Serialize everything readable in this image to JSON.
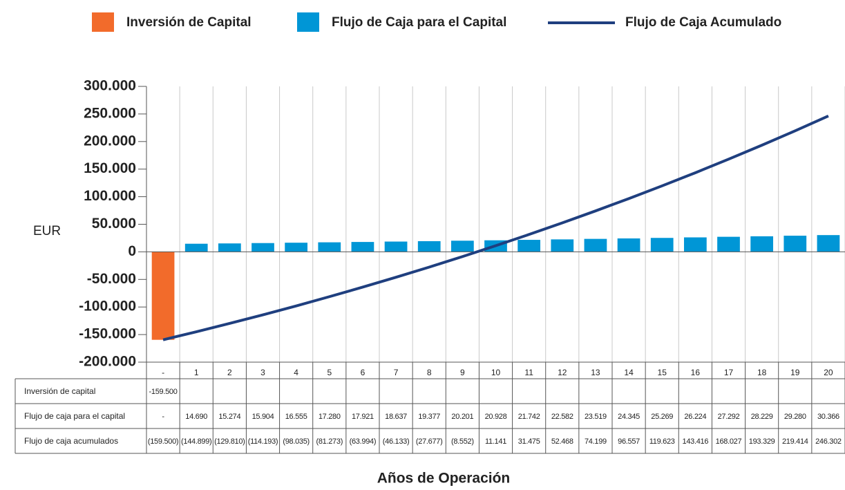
{
  "chart_data": {
    "type": "bar-line-table",
    "y_label": "EUR",
    "x_label": "Años de Operación",
    "categories": [
      "-",
      "1",
      "2",
      "3",
      "4",
      "5",
      "6",
      "7",
      "8",
      "9",
      "10",
      "11",
      "12",
      "13",
      "14",
      "15",
      "16",
      "17",
      "18",
      "19",
      "20"
    ],
    "series": [
      {
        "name": "Inversión de Capital",
        "color": "#f26b2b",
        "kind": "bar",
        "values": [
          -159500,
          null,
          null,
          null,
          null,
          null,
          null,
          null,
          null,
          null,
          null,
          null,
          null,
          null,
          null,
          null,
          null,
          null,
          null,
          null,
          null
        ],
        "value_labels": [
          "-159.500",
          null,
          null,
          null,
          null,
          null,
          null,
          null,
          null,
          null,
          null,
          null,
          null,
          null,
          null,
          null,
          null,
          null,
          null,
          null,
          null
        ]
      },
      {
        "name": "Flujo de Caja para el Capital",
        "color": "#0096d6",
        "kind": "bar",
        "values": [
          null,
          14690,
          15274,
          15904,
          16555,
          17280,
          17921,
          18637,
          19377,
          20201,
          20928,
          21742,
          22582,
          23519,
          24345,
          25269,
          26224,
          27292,
          28229,
          29280,
          30366
        ],
        "value_labels": [
          "-",
          "14.690",
          "15.274",
          "15.904",
          "16.555",
          "17.280",
          "17.921",
          "18.637",
          "19.377",
          "20.201",
          "20.928",
          "21.742",
          "22.582",
          "23.519",
          "24.345",
          "25.269",
          "26.224",
          "27.292",
          "28.229",
          "29.280",
          "30.366"
        ]
      },
      {
        "name": "Flujo de Caja Acumulado",
        "color": "#1f3f7f",
        "kind": "line",
        "values": [
          -159500,
          -144899,
          -129810,
          -114193,
          -98035,
          -81273,
          -63994,
          -46133,
          -27677,
          -8552,
          11141,
          31475,
          52468,
          74199,
          96557,
          119623,
          143416,
          168027,
          193329,
          219414,
          246302
        ],
        "value_labels": [
          "(159.500)",
          "(144.899)",
          "(129.810)",
          "(114.193)",
          "(98.035)",
          "(81.273)",
          "(63.994)",
          "(46.133)",
          "(27.677)",
          "(8.552)",
          "11.141",
          "31.475",
          "52.468",
          "74.199",
          "96.557",
          "119.623",
          "143.416",
          "168.027",
          "193.329",
          "219.414",
          "246.302"
        ]
      }
    ],
    "table_row_labels": [
      "Inversión de capital",
      "Flujo de caja para el capital",
      "Flujo de caja acumulados"
    ],
    "ylim": [
      -200000,
      300000
    ],
    "yticks": [
      {
        "value": -200000,
        "label": "-200.000"
      },
      {
        "value": -150000,
        "label": "-150.000"
      },
      {
        "value": -100000,
        "label": "-100.000"
      },
      {
        "value": -50000,
        "label": "-50.000"
      },
      0,
      {
        "value": 50000,
        "label": "50.000"
      },
      {
        "value": 100000,
        "label": "100.000"
      },
      {
        "value": 150000,
        "label": "150.000"
      },
      {
        "value": 200000,
        "label": "200.000"
      },
      {
        "value": 250000,
        "label": "250.000"
      },
      {
        "value": 300000,
        "label": "300.000"
      }
    ],
    "grid": true
  }
}
